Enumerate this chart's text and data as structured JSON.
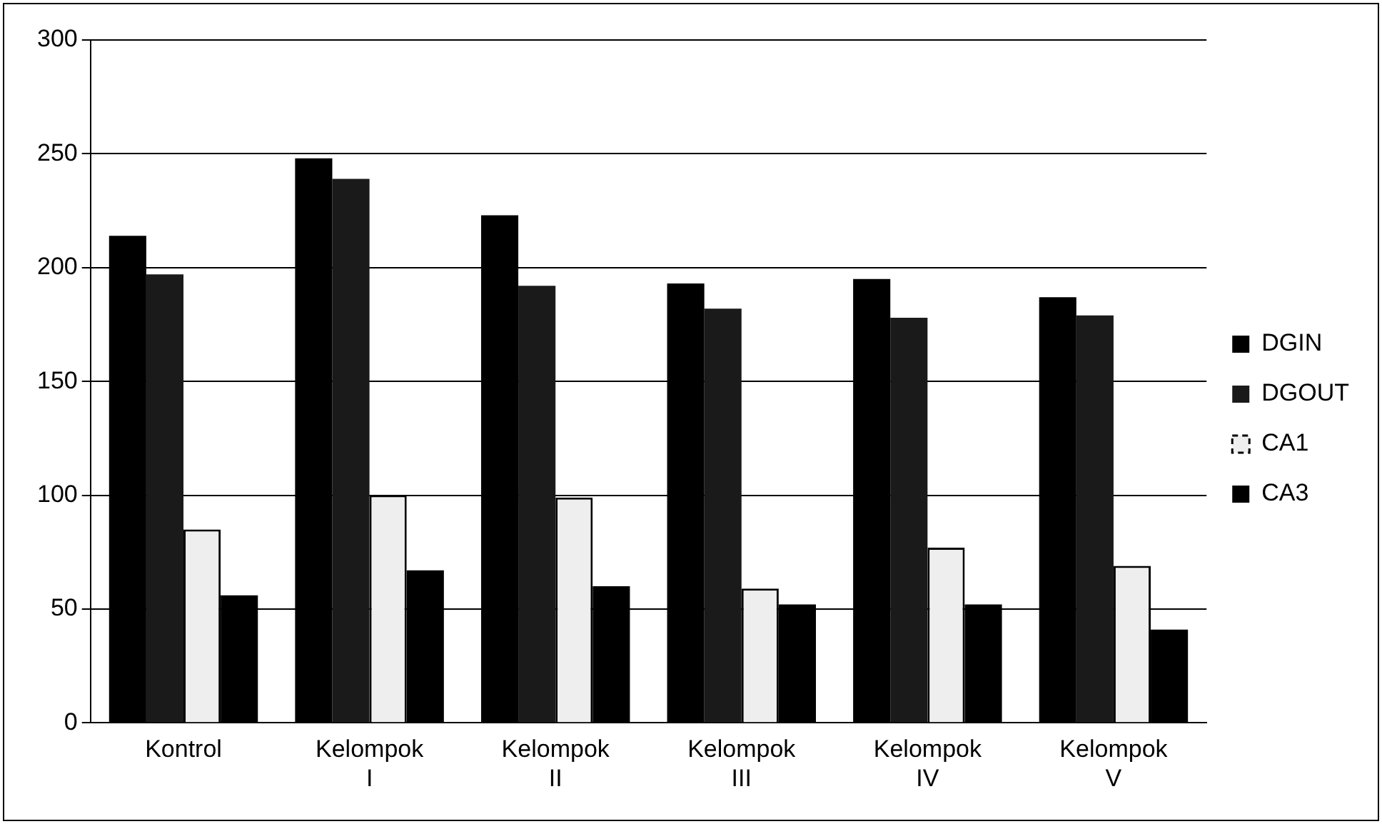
{
  "chart_data": {
    "type": "bar",
    "categories": [
      "Kontrol",
      "Kelompok I",
      "Kelompok II",
      "Kelompok III",
      "Kelompok IV",
      "Kelompok V"
    ],
    "series": [
      {
        "name": "DGIN",
        "color": "#000000",
        "values": [
          214,
          248,
          223,
          193,
          195,
          187
        ]
      },
      {
        "name": "DGOUT",
        "color": "#1a1a1a",
        "values": [
          197,
          239,
          192,
          182,
          178,
          179
        ]
      },
      {
        "name": "CA1",
        "color": "#eeeeee",
        "line_style": "dashed",
        "values": [
          85,
          100,
          99,
          59,
          77,
          69
        ]
      },
      {
        "name": "CA3",
        "color": "#000000",
        "values": [
          56,
          67,
          60,
          52,
          52,
          41
        ]
      }
    ],
    "ylim": [
      0,
      300
    ],
    "yticks": [
      0,
      50,
      100,
      150,
      200,
      250,
      300
    ],
    "grid": "y",
    "legend": "right"
  }
}
